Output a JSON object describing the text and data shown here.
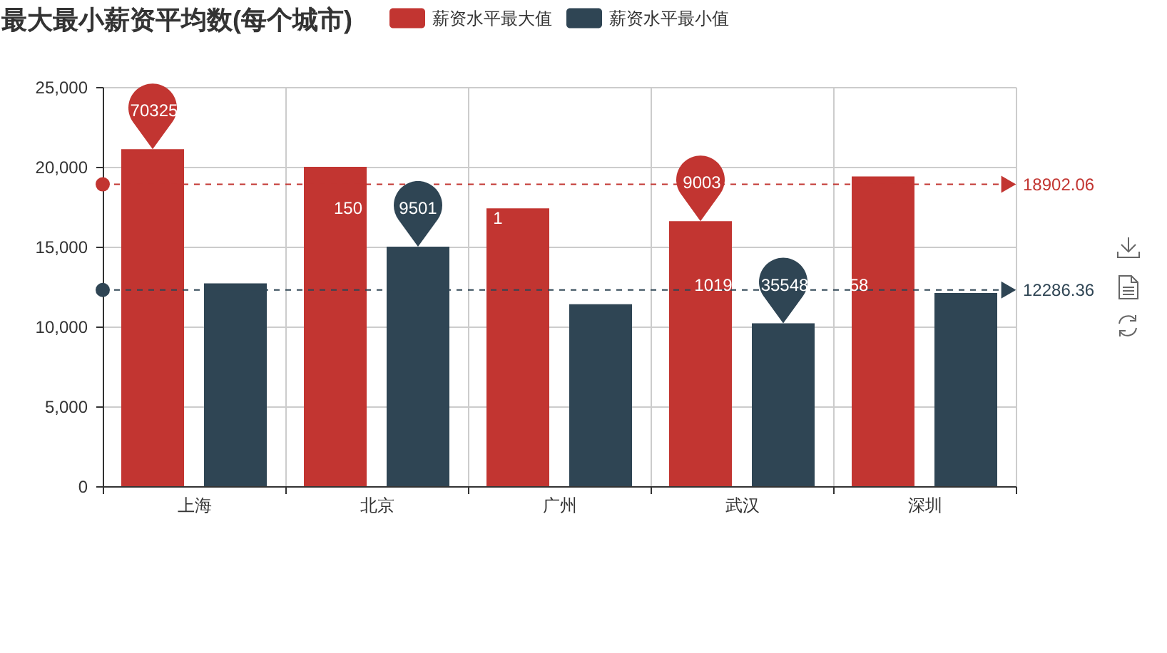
{
  "chart_data": {
    "type": "bar",
    "title": "最大最小薪资平均数(每个城市)",
    "categories": [
      "上海",
      "北京",
      "广州",
      "武汉",
      "深圳"
    ],
    "series": [
      {
        "name": "薪资水平最大值",
        "color": "#c23531",
        "values": [
          21100,
          20000,
          17400,
          16600,
          19400
        ]
      },
      {
        "name": "薪资水平最小值",
        "color": "#2f4554",
        "values": [
          12700,
          15000,
          11400,
          10200,
          12100
        ]
      }
    ],
    "ylim": [
      0,
      25000
    ],
    "yticks": [
      0,
      {
        "value": 5000,
        "label": "5,000"
      },
      {
        "value": 10000,
        "label": "10,000"
      },
      {
        "value": 15000,
        "label": "15,000"
      },
      {
        "value": 20000,
        "label": "20,000"
      },
      {
        "value": 25000,
        "label": "25,000"
      }
    ],
    "grid": true,
    "legend": "top",
    "ref_lines": [
      {
        "axis": "y",
        "value": 18902.06,
        "label": "18902.06",
        "color": "#c23531",
        "line_style": "dashed"
      },
      {
        "axis": "y",
        "value": 12286.36,
        "label": "12286.36",
        "color": "#2f4554",
        "line_style": "dashed"
      }
    ],
    "annotations": [
      "70325",
      "150",
      "9501",
      "1",
      "9003",
      "1019",
      "35548",
      "58"
    ]
  }
}
